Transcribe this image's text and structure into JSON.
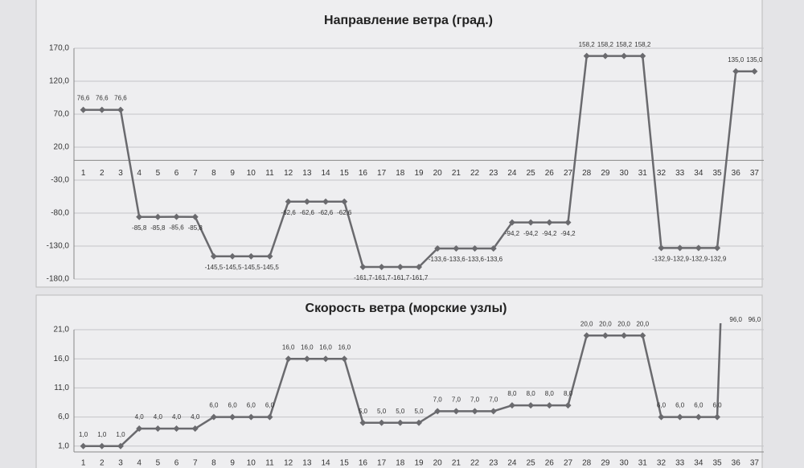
{
  "chart_data": [
    {
      "type": "line",
      "title": "Направление ветра (град.)",
      "categories": [
        "1",
        "2",
        "3",
        "4",
        "5",
        "6",
        "7",
        "8",
        "9",
        "10",
        "11",
        "12",
        "13",
        "14",
        "15",
        "16",
        "17",
        "18",
        "19",
        "20",
        "21",
        "22",
        "23",
        "24",
        "25",
        "26",
        "27",
        "28",
        "29",
        "30",
        "31",
        "32",
        "33",
        "34",
        "35",
        "36",
        "37"
      ],
      "values": [
        76.6,
        76.6,
        76.6,
        -85.8,
        -85.8,
        -85.6,
        -85.8,
        -145.5,
        -145.5,
        -145.5,
        -145.5,
        -62.6,
        -62.6,
        -62.6,
        -62.6,
        -161.7,
        -161.7,
        -161.7,
        -161.7,
        -133.6,
        -133.6,
        -133.6,
        -133.6,
        -94.2,
        -94.2,
        -94.2,
        -94.2,
        158.2,
        158.2,
        158.2,
        158.2,
        -132.9,
        -132.9,
        -132.9,
        -132.9,
        135.0,
        135.0
      ],
      "value_labels": [
        "76,6",
        "76,6",
        "76,6",
        "-85,8",
        "-85,8",
        "-85,6",
        "-85,8",
        "-145,5",
        "-145,5",
        "-145,5",
        "-145,5",
        "-62,6",
        "-62,6",
        "-62,6",
        "-62,6",
        "-161,7",
        "-161,7",
        "-161,7",
        "-161,7",
        "-133,6",
        "-133,6",
        "-133,6",
        "-133,6",
        "-94,2",
        "-94,2",
        "-94,2",
        "-94,2",
        "158,2",
        "158,2",
        "158,2",
        "158,2",
        "-132,9",
        "-132,9",
        "-132,9",
        "-132,9",
        "135,0",
        "135,0"
      ],
      "color": "#6a6a6e",
      "ylim": [
        -180,
        170
      ],
      "yticks": [
        {
          "value": -180,
          "label": "-180,0"
        },
        {
          "value": -130,
          "label": "-130,0"
        },
        {
          "value": -80,
          "label": "-80,0"
        },
        {
          "value": -30,
          "label": "-30,0"
        },
        {
          "value": 20,
          "label": "20,0"
        },
        {
          "value": 70,
          "label": "70,0"
        },
        {
          "value": 120,
          "label": "120,0"
        },
        {
          "value": 170,
          "label": "170,0"
        }
      ],
      "grid": true
    },
    {
      "type": "line",
      "title": "Скорость ветра (морские узлы)",
      "categories": [
        "1",
        "2",
        "3",
        "4",
        "5",
        "6",
        "7",
        "8",
        "9",
        "10",
        "11",
        "12",
        "13",
        "14",
        "15",
        "16",
        "17",
        "18",
        "19",
        "20",
        "21",
        "22",
        "23",
        "24",
        "25",
        "26",
        "27",
        "28",
        "29",
        "30",
        "31",
        "32",
        "33",
        "34",
        "35",
        "36",
        "37"
      ],
      "values": [
        1.0,
        1.0,
        1.0,
        4.0,
        4.0,
        4.0,
        4.0,
        6.0,
        6.0,
        6.0,
        6.0,
        16.0,
        16.0,
        16.0,
        16.0,
        5.0,
        5.0,
        5.0,
        5.0,
        7.0,
        7.0,
        7.0,
        7.0,
        8.0,
        8.0,
        8.0,
        8.0,
        20.0,
        20.0,
        20.0,
        20.0,
        6.0,
        6.0,
        6.0,
        6.0,
        96.0,
        96.0
      ],
      "value_labels": [
        "1,0",
        "1,0",
        "1,0",
        "4,0",
        "4,0",
        "4,0",
        "4,0",
        "6,0",
        "6,0",
        "6,0",
        "6,0",
        "16,0",
        "16,0",
        "16,0",
        "16,0",
        "5,0",
        "5,0",
        "5,0",
        "5,0",
        "7,0",
        "7,0",
        "7,0",
        "7,0",
        "8,0",
        "8,0",
        "8,0",
        "8,0",
        "20,0",
        "20,0",
        "20,0",
        "20,0",
        "6,0",
        "6,0",
        "6,0",
        "6,0",
        "96,0",
        "96,0"
      ],
      "color": "#6a6a6e",
      "ylim": [
        0,
        21
      ],
      "yticks": [
        {
          "value": 1,
          "label": "1,0"
        },
        {
          "value": 6,
          "label": "6,0"
        },
        {
          "value": 11,
          "label": "11,0"
        },
        {
          "value": 16,
          "label": "16,0"
        },
        {
          "value": 21,
          "label": "21,0"
        }
      ],
      "grid": true
    }
  ]
}
